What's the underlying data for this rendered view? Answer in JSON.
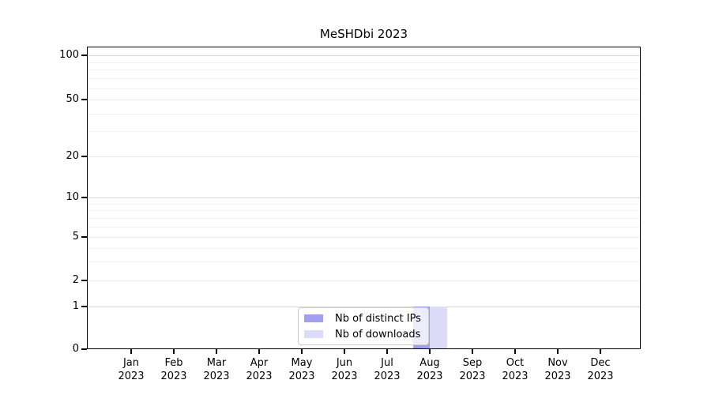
{
  "title": "MeSHDbi 2023",
  "chart_data": {
    "type": "bar",
    "title": "MeSHDbi 2023",
    "categories": [
      "Jan",
      "Feb",
      "Mar",
      "Apr",
      "May",
      "Jun",
      "Jul",
      "Aug",
      "Sep",
      "Oct",
      "Nov",
      "Dec"
    ],
    "year_label": "2023",
    "series": [
      {
        "name": "Nb of distinct IPs",
        "color": "#a0a0ee",
        "values": [
          0,
          0,
          0,
          0,
          0,
          0,
          0,
          1,
          0,
          0,
          0,
          0
        ]
      },
      {
        "name": "Nb of downloads",
        "color": "#dcdcf8",
        "values": [
          0,
          0,
          0,
          0,
          0,
          0,
          0,
          1,
          0,
          0,
          0,
          0
        ]
      }
    ],
    "y_ticks": [
      "100",
      "50",
      "20",
      "10",
      "5",
      "2",
      "1",
      "0"
    ],
    "ylim": [
      0,
      100
    ],
    "y_scale": "log-above-1-linear-below",
    "grid": true,
    "legend_position": "lower center",
    "colors": {
      "major_gridline": "#d5d5d5",
      "labeled_gridline": "#e9e9e9",
      "minor_gridline": "#f1f1f1",
      "axis": "#000000"
    }
  }
}
